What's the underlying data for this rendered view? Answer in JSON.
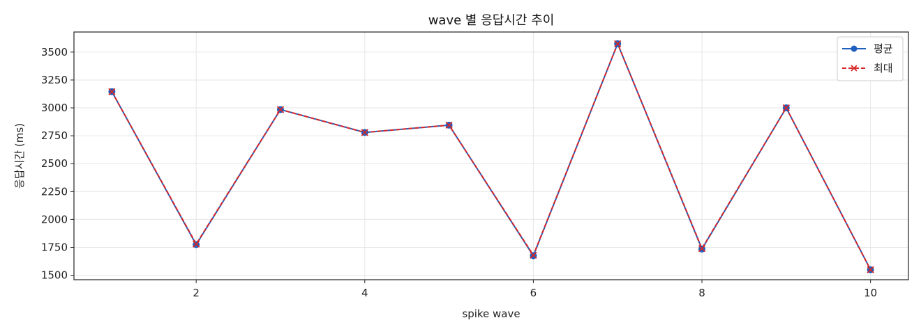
{
  "chart_data": {
    "type": "line",
    "title": "wave 별 응답시간 추이",
    "xlabel": "spike wave",
    "ylabel": "응답시간 (ms)",
    "x": [
      1,
      2,
      3,
      4,
      5,
      6,
      7,
      8,
      9,
      10
    ],
    "xticks": [
      "2",
      "4",
      "6",
      "8",
      "10"
    ],
    "xlim": [
      0.55,
      10.45
    ],
    "yticks": [
      "1500",
      "1750",
      "2000",
      "2250",
      "2500",
      "2750",
      "3000",
      "3250",
      "3500"
    ],
    "ylim": [
      1460,
      3680
    ],
    "grid": true,
    "legend_position": "top-right",
    "series": [
      {
        "name": "평균",
        "color": "#1f5fbf",
        "style": "solid",
        "marker": "circle",
        "values": [
          3145,
          1775,
          2985,
          2780,
          2845,
          1675,
          3575,
          1735,
          3000,
          1550
        ]
      },
      {
        "name": "최대",
        "color": "#d62728",
        "style": "dashed",
        "marker": "x",
        "values": [
          3145,
          1780,
          2985,
          2780,
          2845,
          1680,
          3575,
          1740,
          3000,
          1550
        ]
      }
    ]
  }
}
